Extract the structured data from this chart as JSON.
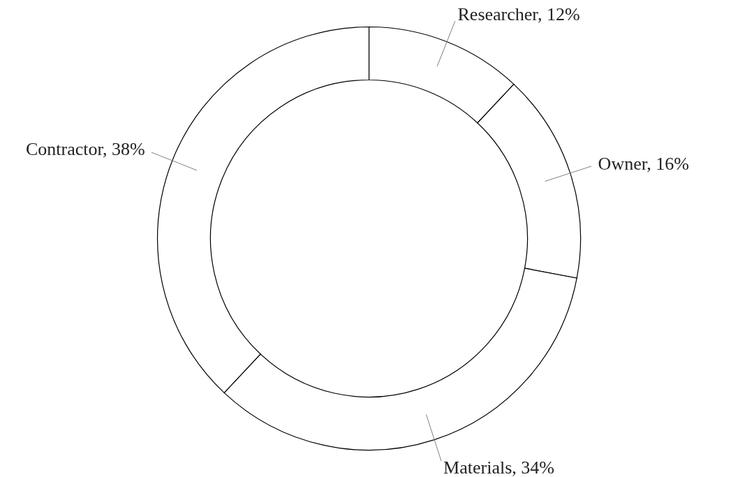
{
  "chart_data": {
    "type": "donut",
    "categories": [
      "Researcher",
      "Owner",
      "Materials",
      "Contractor"
    ],
    "values": [
      12,
      16,
      34,
      38
    ],
    "value_labels": [
      "12%",
      "16%",
      "34%",
      "38%"
    ],
    "colors": [
      "#ffffff",
      "#ffffff",
      "#ffffff",
      "#ffffff"
    ]
  }
}
